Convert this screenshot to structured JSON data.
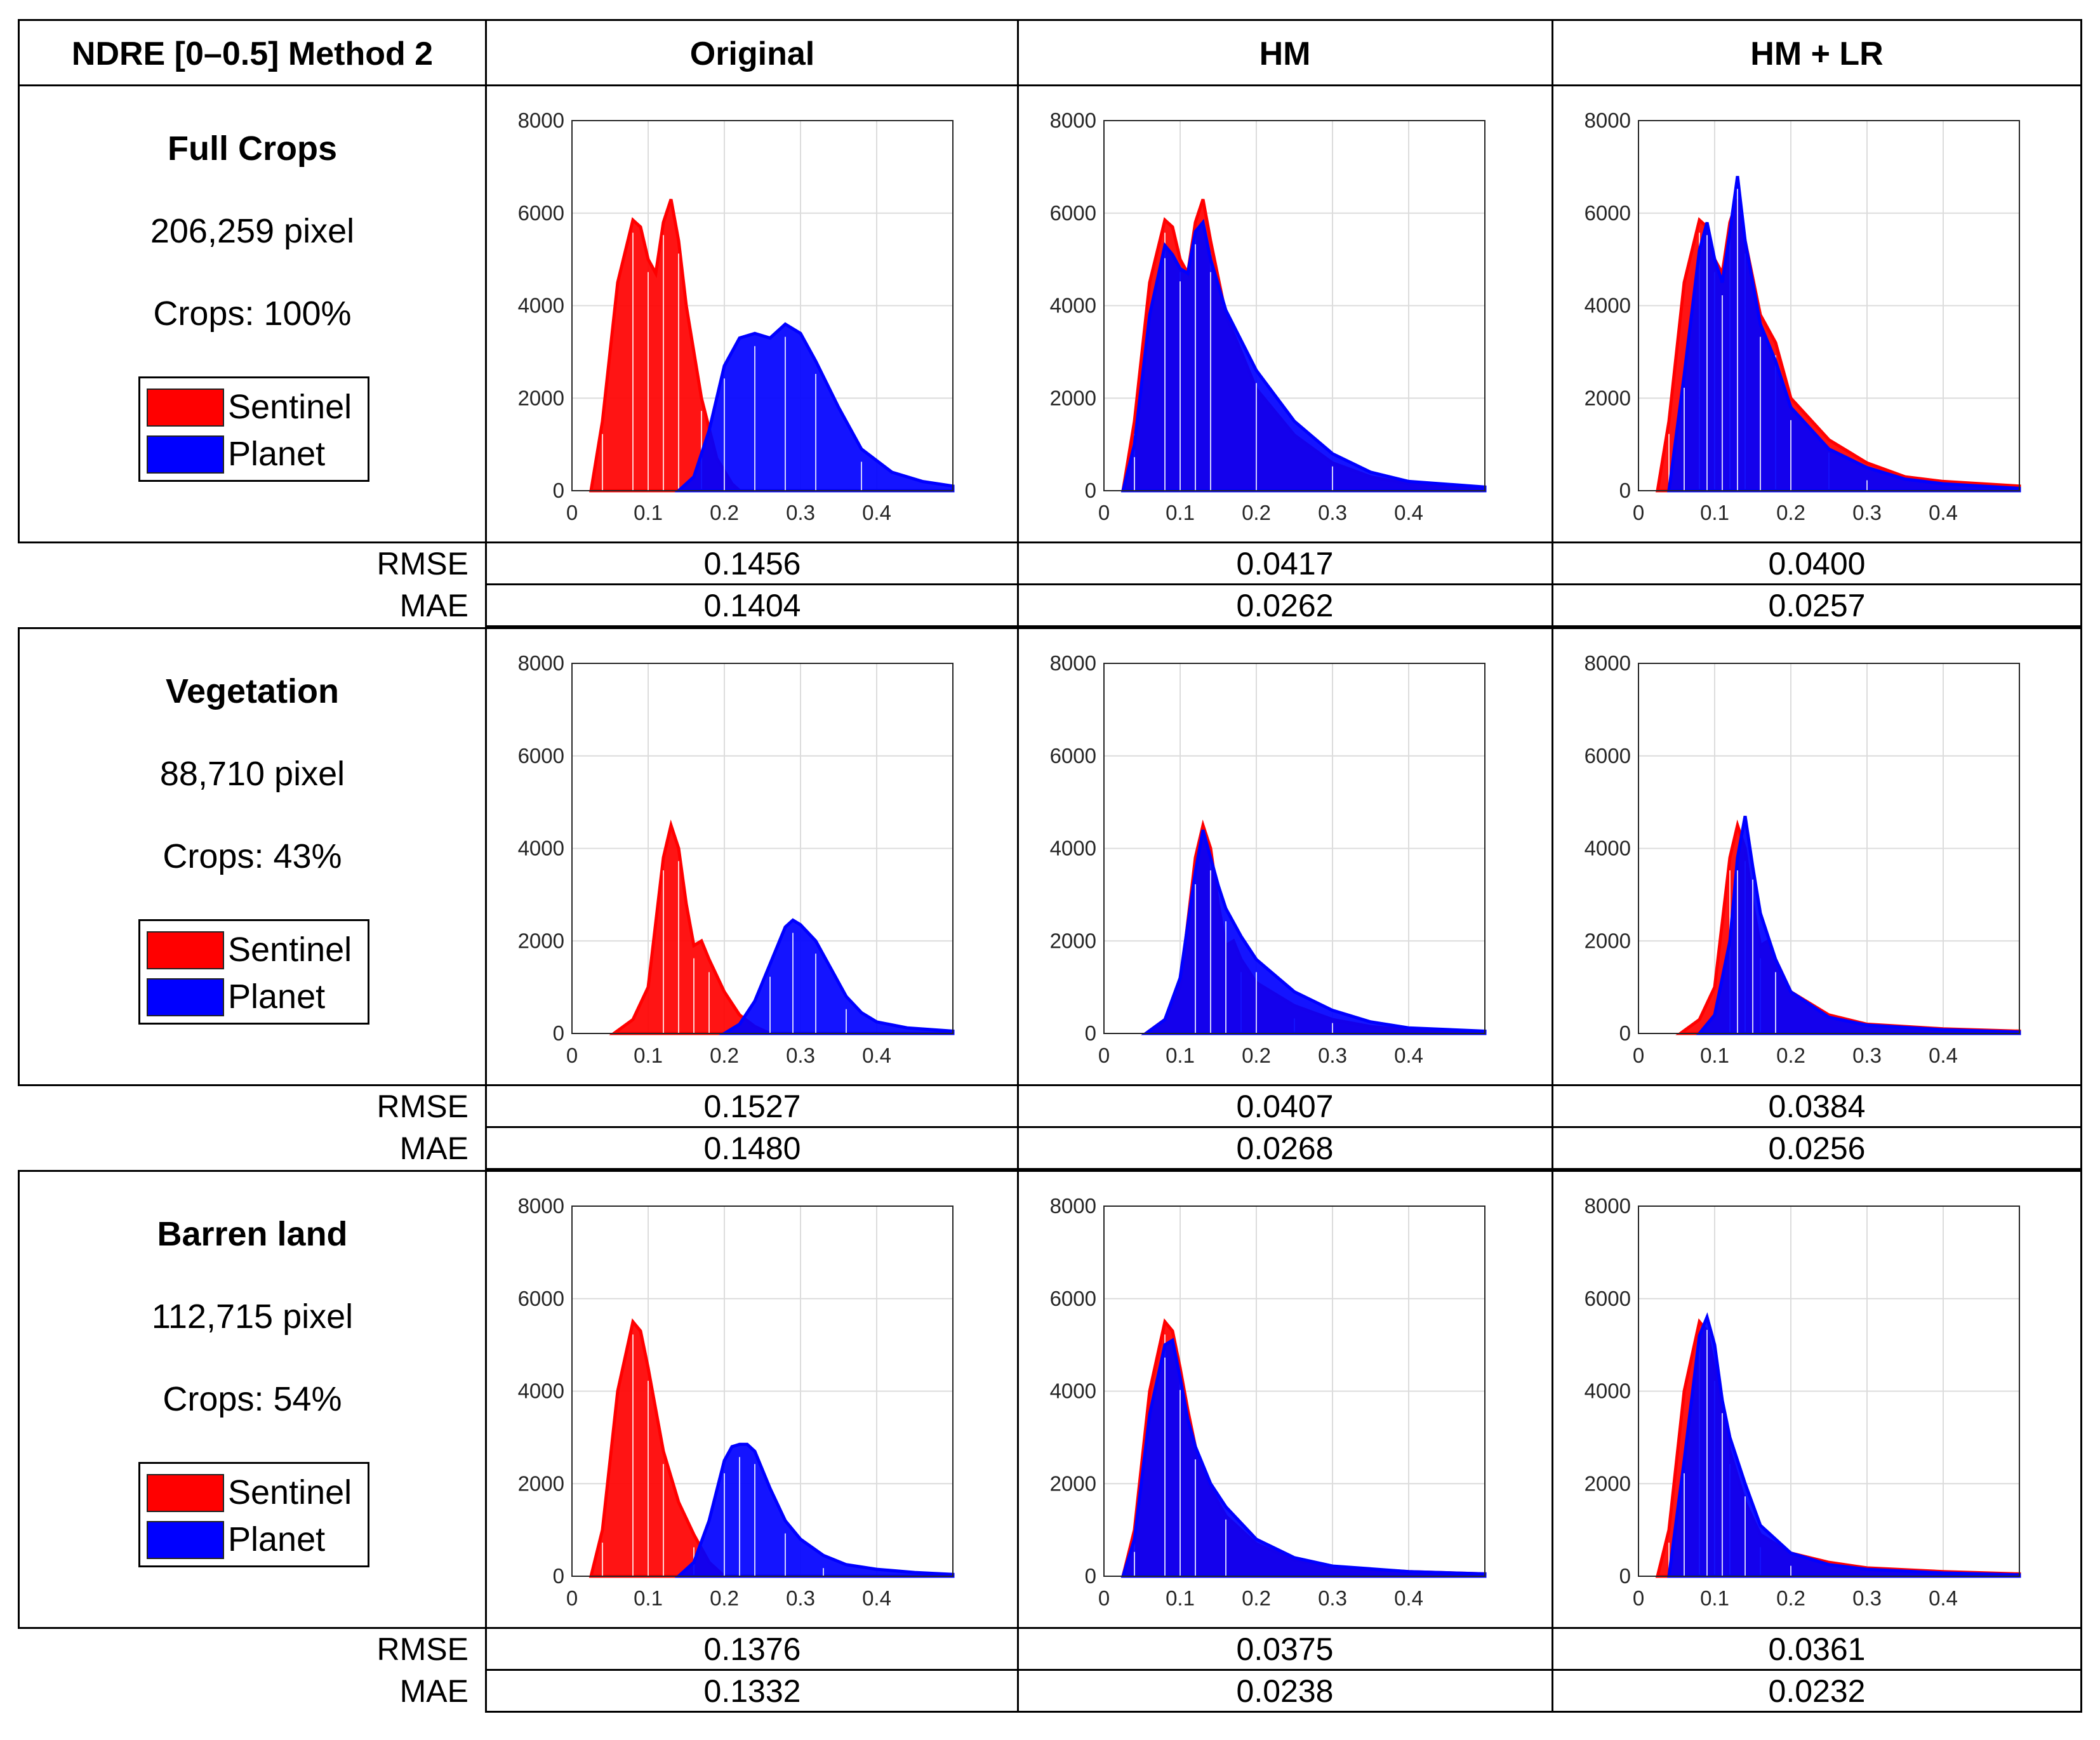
{
  "table": {
    "corner_label": "NDRE [0–0.5] Method 2",
    "columns": [
      "Original",
      "HM",
      "HM + LR"
    ],
    "metric_labels": {
      "rmse": "RMSE",
      "mae": "MAE"
    },
    "legend": {
      "sentinel": "Sentinel",
      "planet": "Planet",
      "sentinel_color": "#ff0000",
      "planet_color": "#0000ff"
    },
    "rows": [
      {
        "title": "Full Crops",
        "pixels": "206,259 pixel",
        "crops": "Crops: 100%",
        "rmse": [
          "0.1456",
          "0.0417",
          "0.0400"
        ],
        "mae": [
          "0.1404",
          "0.0262",
          "0.0257"
        ]
      },
      {
        "title": "Vegetation",
        "pixels": "88,710 pixel",
        "crops": "Crops: 43%",
        "rmse": [
          "0.1527",
          "0.0407",
          "0.0384"
        ],
        "mae": [
          "0.1480",
          "0.0268",
          "0.0256"
        ]
      },
      {
        "title": "Barren land",
        "pixels": "112,715 pixel",
        "crops": "Crops: 54%",
        "rmse": [
          "0.1376",
          "0.0375",
          "0.0361"
        ],
        "mae": [
          "0.1332",
          "0.0238",
          "0.0232"
        ]
      }
    ]
  },
  "chart_data": [
    {
      "type": "area",
      "row": "Full Crops",
      "column": "Original",
      "xlim": [
        0,
        0.5
      ],
      "ylim": [
        0,
        8000
      ],
      "xticks": [
        "0",
        "0.1",
        "0.2",
        "0.3",
        "0.4"
      ],
      "yticks": [
        "0",
        "2000",
        "4000",
        "6000",
        "8000"
      ],
      "series": [
        {
          "name": "Sentinel",
          "x": [
            0.025,
            0.04,
            0.06,
            0.08,
            0.09,
            0.1,
            0.11,
            0.12,
            0.13,
            0.14,
            0.15,
            0.17,
            0.19,
            0.21,
            0.22
          ],
          "y": [
            0,
            1500,
            4500,
            5850,
            5700,
            5000,
            4700,
            5800,
            6300,
            5400,
            4000,
            2000,
            700,
            150,
            0
          ]
        },
        {
          "name": "Planet",
          "x": [
            0.14,
            0.16,
            0.18,
            0.2,
            0.22,
            0.24,
            0.26,
            0.28,
            0.3,
            0.32,
            0.35,
            0.38,
            0.42,
            0.46,
            0.5
          ],
          "y": [
            0,
            300,
            1300,
            2700,
            3300,
            3400,
            3300,
            3600,
            3400,
            2800,
            1800,
            900,
            400,
            200,
            100
          ]
        }
      ]
    },
    {
      "type": "area",
      "row": "Full Crops",
      "column": "HM",
      "xlim": [
        0,
        0.5
      ],
      "ylim": [
        0,
        8000
      ],
      "xticks": [
        "0",
        "0.1",
        "0.2",
        "0.3",
        "0.4"
      ],
      "yticks": [
        "0",
        "2000",
        "4000",
        "6000",
        "8000"
      ],
      "series": [
        {
          "name": "Sentinel",
          "x": [
            0.025,
            0.04,
            0.06,
            0.08,
            0.09,
            0.1,
            0.11,
            0.12,
            0.13,
            0.14,
            0.16,
            0.2,
            0.25,
            0.3,
            0.35,
            0.4,
            0.5
          ],
          "y": [
            0,
            1500,
            4500,
            5850,
            5700,
            5000,
            4700,
            5800,
            6300,
            5400,
            3800,
            2200,
            1200,
            600,
            300,
            150,
            50
          ]
        },
        {
          "name": "Planet",
          "x": [
            0.025,
            0.04,
            0.06,
            0.08,
            0.09,
            0.1,
            0.11,
            0.12,
            0.13,
            0.14,
            0.16,
            0.2,
            0.25,
            0.3,
            0.35,
            0.4,
            0.5
          ],
          "y": [
            0,
            1000,
            3800,
            5300,
            5100,
            4800,
            4700,
            5600,
            5800,
            5000,
            3900,
            2600,
            1500,
            800,
            400,
            200,
            80
          ]
        }
      ]
    },
    {
      "type": "area",
      "row": "Full Crops",
      "column": "HM + LR",
      "xlim": [
        0,
        0.5
      ],
      "ylim": [
        0,
        8000
      ],
      "xticks": [
        "0",
        "0.1",
        "0.2",
        "0.3",
        "0.4"
      ],
      "yticks": [
        "0",
        "2000",
        "4000",
        "6000",
        "8000"
      ],
      "series": [
        {
          "name": "Sentinel",
          "x": [
            0.025,
            0.04,
            0.06,
            0.08,
            0.09,
            0.1,
            0.11,
            0.12,
            0.13,
            0.14,
            0.16,
            0.18,
            0.2,
            0.25,
            0.3,
            0.35,
            0.4,
            0.5
          ],
          "y": [
            0,
            1500,
            4500,
            5850,
            5700,
            5000,
            4700,
            5800,
            6300,
            5400,
            3800,
            3200,
            2000,
            1100,
            600,
            300,
            200,
            100
          ]
        },
        {
          "name": "Planet",
          "x": [
            0.04,
            0.06,
            0.08,
            0.09,
            0.1,
            0.11,
            0.12,
            0.13,
            0.14,
            0.16,
            0.18,
            0.2,
            0.25,
            0.3,
            0.35,
            0.4,
            0.5
          ],
          "y": [
            0,
            2500,
            5200,
            5800,
            5000,
            4500,
            5600,
            6800,
            5400,
            3600,
            2800,
            1800,
            900,
            500,
            250,
            150,
            50
          ]
        }
      ]
    },
    {
      "type": "area",
      "row": "Vegetation",
      "column": "Original",
      "xlim": [
        0,
        0.5
      ],
      "ylim": [
        0,
        8000
      ],
      "xticks": [
        "0",
        "0.1",
        "0.2",
        "0.3",
        "0.4"
      ],
      "yticks": [
        "0",
        "2000",
        "4000",
        "6000",
        "8000"
      ],
      "series": [
        {
          "name": "Sentinel",
          "x": [
            0.055,
            0.08,
            0.1,
            0.12,
            0.13,
            0.14,
            0.15,
            0.16,
            0.17,
            0.18,
            0.2,
            0.22,
            0.24,
            0.26
          ],
          "y": [
            0,
            300,
            1000,
            3800,
            4500,
            4000,
            2800,
            1900,
            2000,
            1600,
            900,
            400,
            150,
            0
          ]
        },
        {
          "name": "Planet",
          "x": [
            0.2,
            0.22,
            0.24,
            0.26,
            0.28,
            0.29,
            0.3,
            0.32,
            0.34,
            0.36,
            0.38,
            0.4,
            0.44,
            0.5
          ],
          "y": [
            0,
            200,
            700,
            1500,
            2300,
            2450,
            2350,
            2000,
            1400,
            800,
            450,
            250,
            120,
            50
          ]
        }
      ]
    },
    {
      "type": "area",
      "row": "Vegetation",
      "column": "HM",
      "xlim": [
        0,
        0.5
      ],
      "ylim": [
        0,
        8000
      ],
      "xticks": [
        "0",
        "0.1",
        "0.2",
        "0.3",
        "0.4"
      ],
      "yticks": [
        "0",
        "2000",
        "4000",
        "6000",
        "8000"
      ],
      "series": [
        {
          "name": "Sentinel",
          "x": [
            0.055,
            0.08,
            0.1,
            0.12,
            0.13,
            0.14,
            0.15,
            0.16,
            0.17,
            0.18,
            0.2,
            0.25,
            0.3,
            0.35,
            0.4,
            0.5
          ],
          "y": [
            0,
            300,
            1000,
            3800,
            4500,
            4000,
            2800,
            1900,
            2000,
            1600,
            1100,
            600,
            300,
            150,
            80,
            40
          ]
        },
        {
          "name": "Planet",
          "x": [
            0.055,
            0.08,
            0.1,
            0.12,
            0.13,
            0.14,
            0.15,
            0.16,
            0.18,
            0.2,
            0.25,
            0.3,
            0.35,
            0.4,
            0.5
          ],
          "y": [
            0,
            300,
            1200,
            3500,
            4400,
            3800,
            3200,
            2700,
            2100,
            1600,
            900,
            500,
            250,
            120,
            50
          ]
        }
      ]
    },
    {
      "type": "area",
      "row": "Vegetation",
      "column": "HM + LR",
      "xlim": [
        0,
        0.5
      ],
      "ylim": [
        0,
        8000
      ],
      "xticks": [
        "0",
        "0.1",
        "0.2",
        "0.3",
        "0.4"
      ],
      "yticks": [
        "0",
        "2000",
        "4000",
        "6000",
        "8000"
      ],
      "series": [
        {
          "name": "Sentinel",
          "x": [
            0.055,
            0.08,
            0.1,
            0.12,
            0.13,
            0.14,
            0.15,
            0.16,
            0.17,
            0.18,
            0.2,
            0.25,
            0.3,
            0.4,
            0.5
          ],
          "y": [
            0,
            300,
            1000,
            3800,
            4500,
            4000,
            2800,
            1900,
            2000,
            1600,
            900,
            400,
            200,
            100,
            50
          ]
        },
        {
          "name": "Planet",
          "x": [
            0.08,
            0.1,
            0.12,
            0.13,
            0.14,
            0.15,
            0.16,
            0.18,
            0.2,
            0.25,
            0.3,
            0.4,
            0.5
          ],
          "y": [
            0,
            400,
            2000,
            3800,
            4700,
            3600,
            2600,
            1600,
            900,
            350,
            180,
            80,
            30
          ]
        }
      ]
    },
    {
      "type": "area",
      "row": "Barren land",
      "column": "Original",
      "xlim": [
        0,
        0.5
      ],
      "ylim": [
        0,
        8000
      ],
      "xticks": [
        "0",
        "0.1",
        "0.2",
        "0.3",
        "0.4"
      ],
      "yticks": [
        "0",
        "2000",
        "4000",
        "6000",
        "8000"
      ],
      "series": [
        {
          "name": "Sentinel",
          "x": [
            0.025,
            0.04,
            0.06,
            0.08,
            0.09,
            0.1,
            0.11,
            0.12,
            0.14,
            0.16,
            0.18,
            0.2
          ],
          "y": [
            0,
            1000,
            4000,
            5500,
            5300,
            4500,
            3600,
            2700,
            1600,
            900,
            300,
            0
          ]
        },
        {
          "name": "Planet",
          "x": [
            0.14,
            0.16,
            0.18,
            0.2,
            0.21,
            0.22,
            0.23,
            0.24,
            0.26,
            0.28,
            0.3,
            0.33,
            0.36,
            0.4,
            0.45,
            0.5
          ],
          "y": [
            0,
            300,
            1200,
            2500,
            2800,
            2850,
            2850,
            2700,
            1900,
            1200,
            800,
            450,
            250,
            150,
            80,
            40
          ]
        }
      ]
    },
    {
      "type": "area",
      "row": "Barren land",
      "column": "HM",
      "xlim": [
        0,
        0.5
      ],
      "ylim": [
        0,
        8000
      ],
      "xticks": [
        "0",
        "0.1",
        "0.2",
        "0.3",
        "0.4"
      ],
      "yticks": [
        "0",
        "2000",
        "4000",
        "6000",
        "8000"
      ],
      "series": [
        {
          "name": "Sentinel",
          "x": [
            0.025,
            0.04,
            0.06,
            0.08,
            0.09,
            0.1,
            0.11,
            0.12,
            0.14,
            0.16,
            0.2,
            0.25,
            0.3,
            0.4,
            0.5
          ],
          "y": [
            0,
            1000,
            4000,
            5500,
            5300,
            4500,
            3600,
            2800,
            1900,
            1300,
            700,
            350,
            200,
            100,
            50
          ]
        },
        {
          "name": "Planet",
          "x": [
            0.025,
            0.04,
            0.06,
            0.08,
            0.09,
            0.1,
            0.11,
            0.12,
            0.14,
            0.16,
            0.2,
            0.25,
            0.3,
            0.4,
            0.5
          ],
          "y": [
            0,
            800,
            3500,
            5000,
            5100,
            4300,
            3400,
            2800,
            2000,
            1500,
            800,
            400,
            220,
            100,
            50
          ]
        }
      ]
    },
    {
      "type": "area",
      "row": "Barren land",
      "column": "HM + LR",
      "xlim": [
        0,
        0.5
      ],
      "ylim": [
        0,
        8000
      ],
      "xticks": [
        "0",
        "0.1",
        "0.2",
        "0.3",
        "0.4"
      ],
      "yticks": [
        "0",
        "2000",
        "4000",
        "6000",
        "8000"
      ],
      "series": [
        {
          "name": "Sentinel",
          "x": [
            0.025,
            0.04,
            0.06,
            0.08,
            0.09,
            0.1,
            0.11,
            0.12,
            0.14,
            0.16,
            0.2,
            0.25,
            0.3,
            0.4,
            0.5
          ],
          "y": [
            0,
            1000,
            4000,
            5500,
            5300,
            4500,
            3600,
            2700,
            1600,
            900,
            500,
            300,
            180,
            100,
            50
          ]
        },
        {
          "name": "Planet",
          "x": [
            0.04,
            0.06,
            0.08,
            0.09,
            0.1,
            0.11,
            0.12,
            0.14,
            0.16,
            0.2,
            0.25,
            0.3,
            0.4,
            0.5
          ],
          "y": [
            0,
            2500,
            5200,
            5600,
            5000,
            3800,
            3000,
            2000,
            1100,
            500,
            250,
            150,
            70,
            30
          ]
        }
      ]
    }
  ]
}
